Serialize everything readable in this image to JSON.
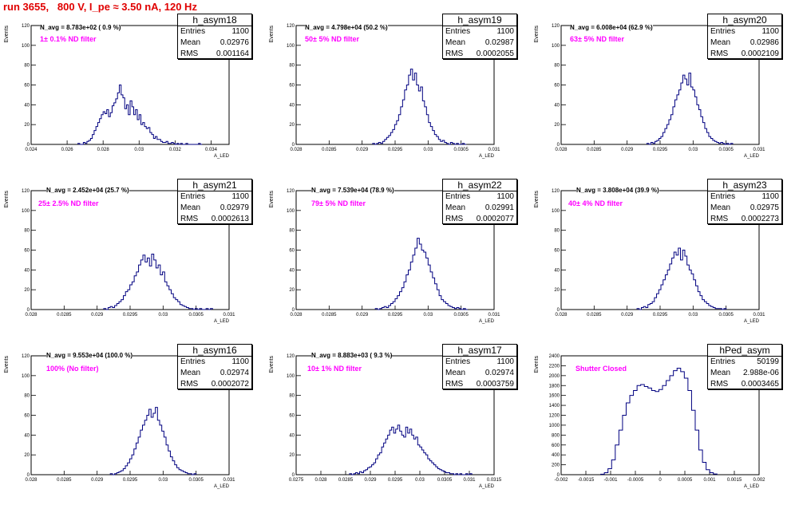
{
  "title": "run 3655,   800 V, I_pe ≈ 3.50 nA, 120 Hz",
  "stat_labels": {
    "entries": "Entries",
    "mean": "Mean",
    "rms": "RMS"
  },
  "line_color": "#000080",
  "chart_data": [
    {
      "type": "histogram",
      "name": "h_asym18",
      "n_avg": "N_avg = 8.783e+02 ( 0.9 %)",
      "note": "1± 0.1% ND filter",
      "entries": "1100",
      "mean": "0.02976",
      "rms": "0.001164",
      "ylabel": "Events",
      "xlabel": "A_LED",
      "xlim": [
        0.024,
        0.035
      ],
      "ylim": [
        0,
        120
      ],
      "xticks": [
        0.024,
        0.026,
        0.028,
        0.03,
        0.032,
        0.034
      ],
      "xtick_labels": [
        "0.024",
        "0.026",
        "0.028",
        "0.03",
        "0.032",
        "0.034"
      ],
      "yticks": [
        0,
        20,
        40,
        60,
        80,
        100,
        120
      ],
      "bin_edges": [
        0.0266,
        0.0335
      ],
      "values": [
        1,
        0,
        0,
        2,
        1,
        3,
        4,
        6,
        10,
        14,
        18,
        22,
        26,
        30,
        33,
        31,
        35,
        28,
        32,
        39,
        42,
        46,
        52,
        60,
        50,
        47,
        36,
        40,
        30,
        44,
        38,
        30,
        35,
        25,
        30,
        20,
        22,
        18,
        16,
        17,
        12,
        10,
        6,
        8,
        5,
        5,
        3,
        2,
        2,
        3,
        1,
        1,
        2,
        1,
        0,
        1,
        0,
        1,
        0,
        0,
        1,
        0,
        0,
        0,
        0,
        0,
        0,
        1,
        0
      ]
    },
    {
      "type": "histogram",
      "name": "h_asym19",
      "n_avg": "N_avg = 4.798e+04 (50.2 %)",
      "note": "50± 5% ND filter",
      "entries": "1100",
      "mean": "0.02987",
      "rms": "0.0002055",
      "ylabel": "Events",
      "xlabel": "A_LED",
      "xlim": [
        0.028,
        0.031
      ],
      "ylim": [
        0,
        120
      ],
      "xticks": [
        0.028,
        0.0285,
        0.029,
        0.0295,
        0.03,
        0.0305,
        0.031
      ],
      "xtick_labels": [
        "0.028",
        "0.0285",
        "0.029",
        "0.0295",
        "0.03",
        "0.0305",
        "0.031"
      ],
      "yticks": [
        0,
        20,
        40,
        60,
        80,
        100,
        120
      ],
      "bin_edges": [
        0.02916,
        0.03058
      ],
      "values": [
        1,
        0,
        1,
        2,
        1,
        3,
        5,
        7,
        9,
        12,
        15,
        20,
        24,
        30,
        38,
        45,
        55,
        60,
        70,
        76,
        65,
        72,
        60,
        54,
        58,
        44,
        38,
        30,
        22,
        18,
        14,
        10,
        8,
        5,
        3,
        4,
        2,
        1,
        0,
        2,
        1,
        0,
        1,
        0,
        0,
        1,
        0
      ]
    },
    {
      "type": "histogram",
      "name": "h_asym20",
      "n_avg": "N_avg = 6.008e+04 (62.9 %)",
      "note": "63± 5% ND filter",
      "entries": "1100",
      "mean": "0.02986",
      "rms": "0.0002109",
      "ylabel": "Events",
      "xlabel": "A_LED",
      "xlim": [
        0.028,
        0.031
      ],
      "ylim": [
        0,
        120
      ],
      "xticks": [
        0.028,
        0.0285,
        0.029,
        0.0295,
        0.03,
        0.0305,
        0.031
      ],
      "xtick_labels": [
        "0.028",
        "0.0285",
        "0.029",
        "0.0295",
        "0.03",
        "0.0305",
        "0.031"
      ],
      "yticks": [
        0,
        20,
        40,
        60,
        80,
        100,
        120
      ],
      "bin_edges": [
        0.0293,
        0.0306
      ],
      "values": [
        1,
        0,
        2,
        1,
        3,
        4,
        6,
        8,
        12,
        16,
        20,
        25,
        30,
        38,
        45,
        50,
        55,
        62,
        70,
        66,
        60,
        72,
        58,
        55,
        48,
        40,
        35,
        28,
        22,
        16,
        12,
        8,
        6,
        4,
        3,
        2,
        1,
        2,
        1,
        0,
        1,
        0,
        1
      ]
    },
    {
      "type": "histogram",
      "name": "h_asym21",
      "n_avg": "N_avg = 2.452e+04 (25.7 %)",
      "note": "25± 2.5% ND filter",
      "entries": "1100",
      "mean": "0.02979",
      "rms": "0.0002613",
      "ylabel": "Events",
      "xlabel": "A_LED",
      "xlim": [
        0.028,
        0.031
      ],
      "ylim": [
        0,
        120
      ],
      "xticks": [
        0.028,
        0.0285,
        0.029,
        0.0295,
        0.03,
        0.0305,
        0.031
      ],
      "xtick_labels": [
        "0.028",
        "0.0285",
        "0.029",
        "0.0295",
        "0.03",
        "0.0305",
        "0.031"
      ],
      "yticks": [
        0,
        20,
        40,
        60,
        80,
        100,
        120
      ],
      "bin_edges": [
        0.0291,
        0.03075
      ],
      "values": [
        1,
        0,
        2,
        3,
        2,
        4,
        6,
        8,
        10,
        14,
        18,
        20,
        25,
        28,
        34,
        38,
        45,
        50,
        55,
        48,
        52,
        44,
        56,
        50,
        42,
        45,
        35,
        38,
        28,
        24,
        20,
        16,
        12,
        10,
        8,
        5,
        4,
        3,
        2,
        1,
        1,
        0,
        1,
        0,
        1,
        0,
        0,
        1,
        0,
        1
      ]
    },
    {
      "type": "histogram",
      "name": "h_asym22",
      "n_avg": "N_avg = 7.539e+04 (78.9 %)",
      "note": "79± 5% ND filter",
      "entries": "1100",
      "mean": "0.02991",
      "rms": "0.0002077",
      "ylabel": "Events",
      "xlabel": "A_LED",
      "xlim": [
        0.028,
        0.031
      ],
      "ylim": [
        0,
        120
      ],
      "xticks": [
        0.028,
        0.0285,
        0.029,
        0.0295,
        0.03,
        0.0305,
        0.031
      ],
      "xtick_labels": [
        "0.028",
        "0.0285",
        "0.029",
        "0.0295",
        "0.03",
        "0.0305",
        "0.031"
      ],
      "yticks": [
        0,
        20,
        40,
        60,
        80,
        100,
        120
      ],
      "bin_edges": [
        0.0292,
        0.0306
      ],
      "values": [
        1,
        0,
        1,
        2,
        3,
        2,
        4,
        6,
        8,
        11,
        14,
        18,
        22,
        28,
        35,
        40,
        48,
        55,
        62,
        72,
        66,
        60,
        58,
        52,
        45,
        38,
        32,
        26,
        20,
        14,
        10,
        8,
        6,
        4,
        3,
        2,
        1,
        2,
        1,
        0,
        1,
        0
      ]
    },
    {
      "type": "histogram",
      "name": "h_asym23",
      "n_avg": "N_avg = 3.808e+04 (39.9 %)",
      "note": "40± 4% ND filter",
      "entries": "1100",
      "mean": "0.02975",
      "rms": "0.0002273",
      "ylabel": "Events",
      "xlabel": "A_LED",
      "xlim": [
        0.028,
        0.031
      ],
      "ylim": [
        0,
        120
      ],
      "xticks": [
        0.028,
        0.0285,
        0.029,
        0.0295,
        0.03,
        0.0305,
        0.031
      ],
      "xtick_labels": [
        "0.028",
        "0.0285",
        "0.029",
        "0.0295",
        "0.03",
        "0.0305",
        "0.031"
      ],
      "yticks": [
        0,
        20,
        40,
        60,
        80,
        100,
        120
      ],
      "bin_edges": [
        0.02915,
        0.0305
      ],
      "values": [
        1,
        0,
        2,
        3,
        2,
        5,
        6,
        8,
        12,
        16,
        20,
        25,
        30,
        35,
        40,
        46,
        52,
        58,
        55,
        62,
        50,
        60,
        54,
        45,
        40,
        36,
        30,
        24,
        18,
        14,
        10,
        8,
        6,
        4,
        3,
        2,
        1,
        1,
        1,
        0,
        1
      ]
    },
    {
      "type": "histogram",
      "name": "h_asym16",
      "n_avg": "N_avg = 9.553e+04 (100.0 %)",
      "note": "100% (No filter)",
      "entries": "1100",
      "mean": "0.02974",
      "rms": "0.0002072",
      "ylabel": "Events",
      "xlabel": "A_LED",
      "xlim": [
        0.028,
        0.031
      ],
      "ylim": [
        0,
        120
      ],
      "xticks": [
        0.028,
        0.0285,
        0.029,
        0.0295,
        0.03,
        0.0305,
        0.031
      ],
      "xtick_labels": [
        "0.028",
        "0.0285",
        "0.029",
        "0.0295",
        "0.03",
        "0.0305",
        "0.031"
      ],
      "yticks": [
        0,
        20,
        40,
        60,
        80,
        100,
        120
      ],
      "bin_edges": [
        0.0292,
        0.0305
      ],
      "values": [
        1,
        0,
        1,
        2,
        3,
        4,
        6,
        9,
        12,
        16,
        20,
        26,
        32,
        38,
        45,
        50,
        55,
        60,
        66,
        58,
        62,
        68,
        55,
        50,
        44,
        38,
        30,
        24,
        18,
        14,
        10,
        7,
        5,
        4,
        3,
        2,
        1,
        1,
        0,
        1
      ]
    },
    {
      "type": "histogram",
      "name": "h_asym17",
      "n_avg": "N_avg = 8.883e+03 ( 9.3 %)",
      "note": "10± 1% ND filter",
      "entries": "1100",
      "mean": "0.02974",
      "rms": "0.0003759",
      "ylabel": "Events",
      "xlabel": "A_LED",
      "xlim": [
        0.0275,
        0.0315
      ],
      "ylim": [
        0,
        120
      ],
      "xticks": [
        0.0275,
        0.028,
        0.0285,
        0.029,
        0.0295,
        0.03,
        0.0305,
        0.031,
        0.0315
      ],
      "xtick_labels": [
        "0.0275",
        "0.028",
        "0.0285",
        "0.029",
        "0.0295",
        "0.03",
        "0.0305",
        "0.031",
        "0.0315"
      ],
      "yticks": [
        0,
        20,
        40,
        60,
        80,
        100,
        120
      ],
      "bin_edges": [
        0.02858,
        0.03105
      ],
      "values": [
        1,
        0,
        1,
        2,
        1,
        3,
        2,
        4,
        5,
        7,
        8,
        10,
        12,
        16,
        20,
        22,
        28,
        32,
        36,
        40,
        45,
        48,
        42,
        46,
        50,
        44,
        40,
        38,
        48,
        42,
        46,
        40,
        36,
        38,
        30,
        28,
        25,
        22,
        20,
        16,
        14,
        12,
        10,
        8,
        6,
        5,
        4,
        3,
        2,
        2,
        1,
        1,
        0,
        1,
        0,
        1,
        0,
        0,
        1,
        0,
        1
      ]
    },
    {
      "type": "histogram",
      "name": "hPed_asym",
      "n_avg": "",
      "note": "Shutter Closed",
      "entries": "50199",
      "mean": "2.988e-06",
      "rms": "0.0003465",
      "ylabel": "Events",
      "xlabel": "A_LED",
      "xlim": [
        -0.002,
        0.002
      ],
      "ylim": [
        0,
        2400
      ],
      "xticks": [
        -0.002,
        -0.0015,
        -0.001,
        -0.0005,
        0,
        0.0005,
        0.001,
        0.0015,
        0.002
      ],
      "xtick_labels": [
        "-0.002",
        "-0.0015",
        "-0.001",
        "-0.0005",
        "0",
        "0.0005",
        "0.001",
        "0.0015",
        "0.002"
      ],
      "yticks": [
        0,
        200,
        400,
        600,
        800,
        1000,
        1200,
        1400,
        1600,
        1800,
        2000,
        2200,
        2400
      ],
      "bin_edges": [
        -0.0012,
        0.00115
      ],
      "values": [
        10,
        40,
        120,
        300,
        600,
        900,
        1200,
        1450,
        1600,
        1700,
        1800,
        1820,
        1780,
        1750,
        1700,
        1680,
        1720,
        1800,
        1900,
        2000,
        2100,
        2150,
        2080,
        1950,
        1700,
        1300,
        900,
        500,
        250,
        100,
        40,
        15
      ]
    }
  ]
}
